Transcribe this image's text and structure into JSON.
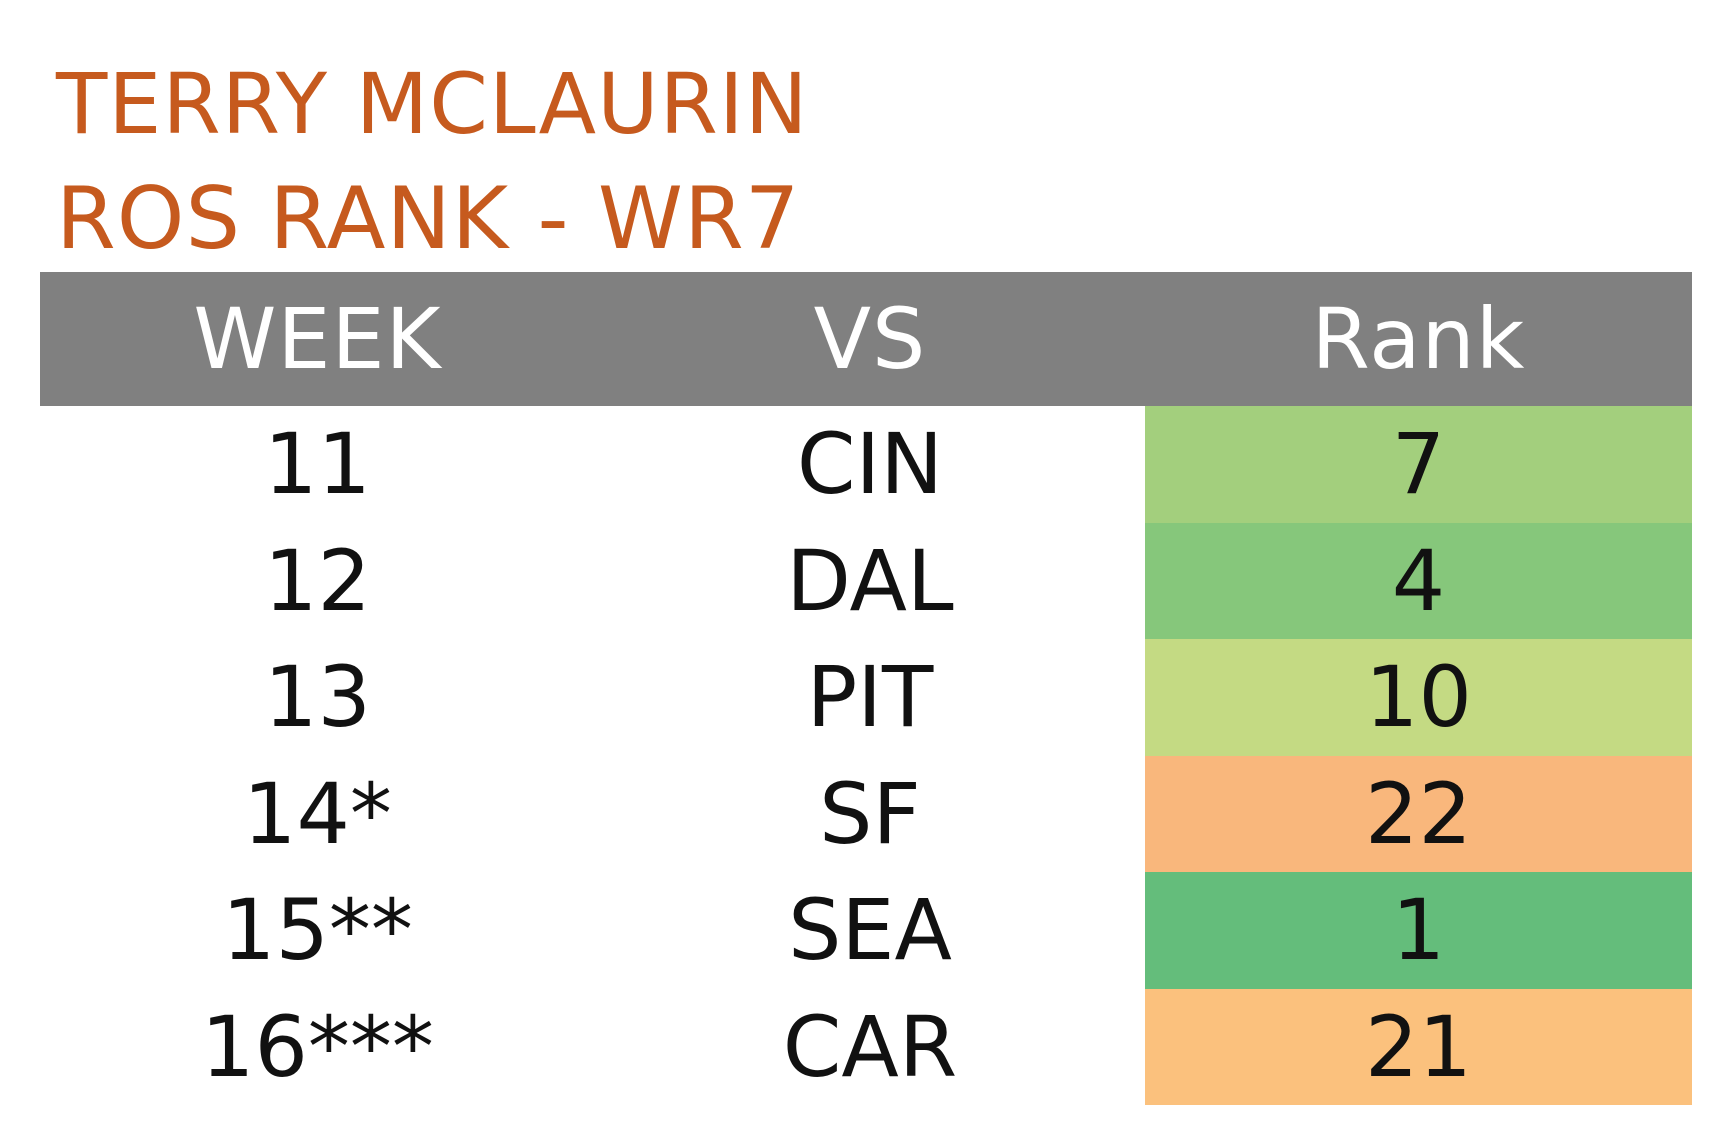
{
  "title": {
    "player": "TERRY MCLAURIN",
    "subtitle": "ROS RANK - WR7",
    "color": "#c65a1e"
  },
  "table": {
    "header_bg": "#808080",
    "headers": {
      "week": "WEEK",
      "vs": "VS",
      "rank": "Rank"
    },
    "rows": [
      {
        "week": "11",
        "vs": "CIN",
        "rank": "7",
        "rank_color": "#a3cf7d"
      },
      {
        "week": "12",
        "vs": "DAL",
        "rank": "4",
        "rank_color": "#86c77b"
      },
      {
        "week": "13",
        "vs": "PIT",
        "rank": "10",
        "rank_color": "#c4da83"
      },
      {
        "week": "14*",
        "vs": "SF",
        "rank": "22",
        "rank_color": "#f9b77c"
      },
      {
        "week": "15**",
        "vs": "SEA",
        "rank": "1",
        "rank_color": "#64bd7b"
      },
      {
        "week": "16***",
        "vs": "CAR",
        "rank": "21",
        "rank_color": "#fbc17d"
      }
    ]
  }
}
